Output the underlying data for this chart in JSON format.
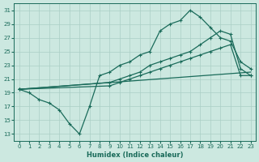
{
  "xlabel": "Humidex (Indice chaleur)",
  "bg_color": "#cce8e0",
  "grid_color": "#aacfc5",
  "line_color": "#1a6b5a",
  "xlim": [
    -0.5,
    23.5
  ],
  "ylim": [
    12,
    32
  ],
  "xticks": [
    0,
    1,
    2,
    3,
    4,
    5,
    6,
    7,
    8,
    9,
    10,
    11,
    12,
    13,
    14,
    15,
    16,
    17,
    18,
    19,
    20,
    21,
    22,
    23
  ],
  "yticks": [
    13,
    15,
    17,
    19,
    21,
    23,
    25,
    27,
    29,
    31
  ],
  "line1_x": [
    0,
    1,
    2,
    3,
    4,
    5,
    6,
    7,
    8,
    9,
    10,
    11,
    12,
    13,
    14,
    15,
    16,
    17,
    18,
    19,
    20,
    21,
    22,
    23
  ],
  "line1_y": [
    19.5,
    19,
    18,
    17.5,
    16.5,
    14.5,
    13,
    17,
    21.5,
    22,
    23,
    23.5,
    24.5,
    25,
    28,
    29,
    29.5,
    31,
    30,
    28.5,
    27,
    26.5,
    23.5,
    22.5
  ],
  "line2_x": [
    0,
    9,
    10,
    11,
    12,
    13,
    14,
    15,
    16,
    17,
    18,
    19,
    20,
    21,
    22,
    23
  ],
  "line2_y": [
    19.5,
    20.5,
    21,
    21.5,
    22,
    23,
    23.5,
    24,
    24.5,
    25,
    26,
    27,
    28,
    27.5,
    22.5,
    21.5
  ],
  "line3_x": [
    0,
    9,
    10,
    11,
    12,
    13,
    14,
    15,
    16,
    17,
    18,
    19,
    20,
    21,
    22,
    23
  ],
  "line3_y": [
    19.5,
    20,
    20.5,
    21,
    21.5,
    22,
    22.5,
    23,
    23.5,
    24,
    24.5,
    25,
    25.5,
    26,
    21.5,
    21.5
  ],
  "line4_x": [
    0,
    23
  ],
  "line4_y": [
    19.5,
    22.0
  ]
}
